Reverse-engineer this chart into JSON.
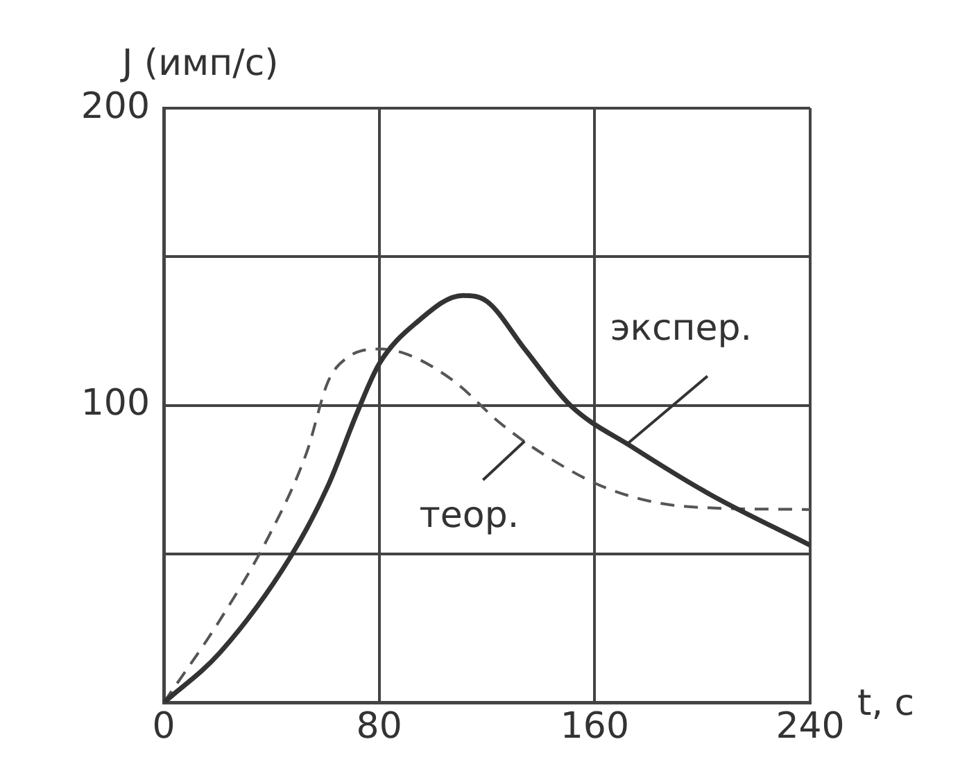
{
  "chart_data": {
    "type": "line",
    "xlabel": "t, с",
    "ylabel": "J (имп/с)",
    "xlim": [
      0,
      240
    ],
    "xticks": [
      0,
      80,
      160,
      240
    ],
    "ylim": [
      0,
      200
    ],
    "yticks": [
      {
        "value": 0,
        "label": null
      },
      {
        "value": 50,
        "label": null
      },
      100,
      {
        "value": 150,
        "label": null
      },
      200
    ],
    "grid": true,
    "legend": false,
    "marker": "none",
    "series": [
      {
        "color": "#333333",
        "line_style": "solid",
        "x": [
          0,
          21,
          47,
          61,
          72,
          80,
          94,
          111,
          120,
          134,
          151,
          174,
          203,
          240
        ],
        "values": [
          0,
          17,
          49,
          73,
          98,
          114,
          128,
          137,
          135,
          119,
          100,
          86,
          70,
          53
        ]
      },
      {
        "color": "#555555",
        "line_style": "dashed",
        "x": [
          0,
          21,
          39,
          53,
          61,
          68,
          80,
          91,
          108,
          125,
          142,
          165,
          194,
          240
        ],
        "values": [
          0,
          28,
          56,
          84,
          108,
          116,
          119,
          117,
          108,
          94,
          83,
          72,
          66,
          65
        ]
      }
    ],
    "annotations": [
      {
        "text": "экспер.",
        "x": 172,
        "y": 87
      },
      {
        "text": "теор.",
        "x": 134,
        "y": 88
      }
    ]
  }
}
